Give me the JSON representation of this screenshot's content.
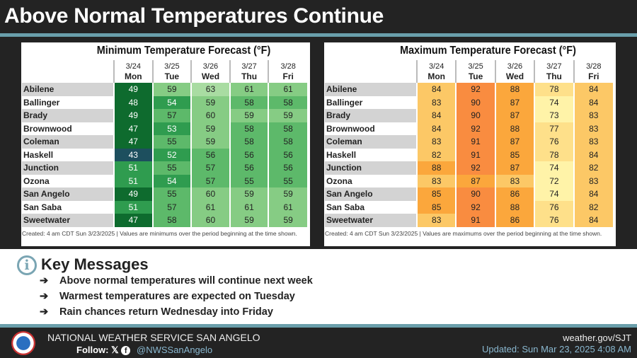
{
  "header": {
    "title": "Above Normal Temperatures Continue"
  },
  "min_table": {
    "title": "Minimum Temperature Forecast (°F)",
    "days": [
      {
        "date": "3/24",
        "day": "Mon"
      },
      {
        "date": "3/25",
        "day": "Tue"
      },
      {
        "date": "3/26",
        "day": "Wed"
      },
      {
        "date": "3/27",
        "day": "Thu"
      },
      {
        "date": "3/28",
        "day": "Fri"
      }
    ],
    "rows": [
      {
        "city": "Abilene",
        "values": [
          49,
          59,
          63,
          61,
          61
        ]
      },
      {
        "city": "Ballinger",
        "values": [
          48,
          54,
          59,
          58,
          58
        ]
      },
      {
        "city": "Brady",
        "values": [
          49,
          57,
          60,
          59,
          59
        ]
      },
      {
        "city": "Brownwood",
        "values": [
          47,
          53,
          59,
          58,
          58
        ]
      },
      {
        "city": "Coleman",
        "values": [
          47,
          55,
          59,
          58,
          58
        ]
      },
      {
        "city": "Haskell",
        "values": [
          43,
          52,
          56,
          56,
          56
        ]
      },
      {
        "city": "Junction",
        "values": [
          51,
          55,
          57,
          56,
          56
        ]
      },
      {
        "city": "Ozona",
        "values": [
          51,
          54,
          57,
          55,
          55
        ]
      },
      {
        "city": "San Angelo",
        "values": [
          49,
          55,
          60,
          59,
          59
        ]
      },
      {
        "city": "San Saba",
        "values": [
          51,
          57,
          61,
          61,
          61
        ]
      },
      {
        "city": "Sweetwater",
        "values": [
          47,
          58,
          60,
          59,
          59
        ]
      }
    ],
    "note": "Created: 4 am CDT Sun 3/23/2025  |  Values are minimums over the period beginning at the time shown."
  },
  "max_table": {
    "title": "Maximum Temperature Forecast (°F)",
    "days": [
      {
        "date": "3/24",
        "day": "Mon"
      },
      {
        "date": "3/25",
        "day": "Tue"
      },
      {
        "date": "3/26",
        "day": "Wed"
      },
      {
        "date": "3/27",
        "day": "Thu"
      },
      {
        "date": "3/28",
        "day": "Fri"
      }
    ],
    "rows": [
      {
        "city": "Abilene",
        "values": [
          84,
          92,
          88,
          78,
          84
        ]
      },
      {
        "city": "Ballinger",
        "values": [
          83,
          90,
          87,
          74,
          84
        ]
      },
      {
        "city": "Brady",
        "values": [
          84,
          90,
          87,
          73,
          83
        ]
      },
      {
        "city": "Brownwood",
        "values": [
          84,
          92,
          88,
          77,
          83
        ]
      },
      {
        "city": "Coleman",
        "values": [
          83,
          91,
          87,
          76,
          83
        ]
      },
      {
        "city": "Haskell",
        "values": [
          82,
          91,
          85,
          78,
          84
        ]
      },
      {
        "city": "Junction",
        "values": [
          88,
          92,
          87,
          74,
          82
        ]
      },
      {
        "city": "Ozona",
        "values": [
          83,
          87,
          83,
          72,
          83
        ]
      },
      {
        "city": "San Angelo",
        "values": [
          85,
          90,
          86,
          74,
          84
        ]
      },
      {
        "city": "San Saba",
        "values": [
          85,
          92,
          88,
          76,
          82
        ]
      },
      {
        "city": "Sweetwater",
        "values": [
          83,
          91,
          86,
          76,
          84
        ]
      }
    ],
    "note": "Created: 4 am CDT Sun 3/23/2025  |  Values are maximums over the period beginning at the time shown."
  },
  "key_messages": {
    "title": "Key Messages",
    "arrow": "➔",
    "items": [
      "Above normal temperatures will continue next week",
      "Warmest temperatures are expected on Tuesday",
      "Rain chances return Wednesday into Friday"
    ]
  },
  "footer": {
    "office": "NATIONAL WEATHER SERVICE SAN ANGELO",
    "follow": "Follow:",
    "x_icon": "𝕏",
    "fb_icon": "f",
    "handle": "@NWSSanAngelo",
    "site": "weather.gov/SJT",
    "updated": "Updated: Sun Mar 23, 2025 4:08 AM"
  }
}
